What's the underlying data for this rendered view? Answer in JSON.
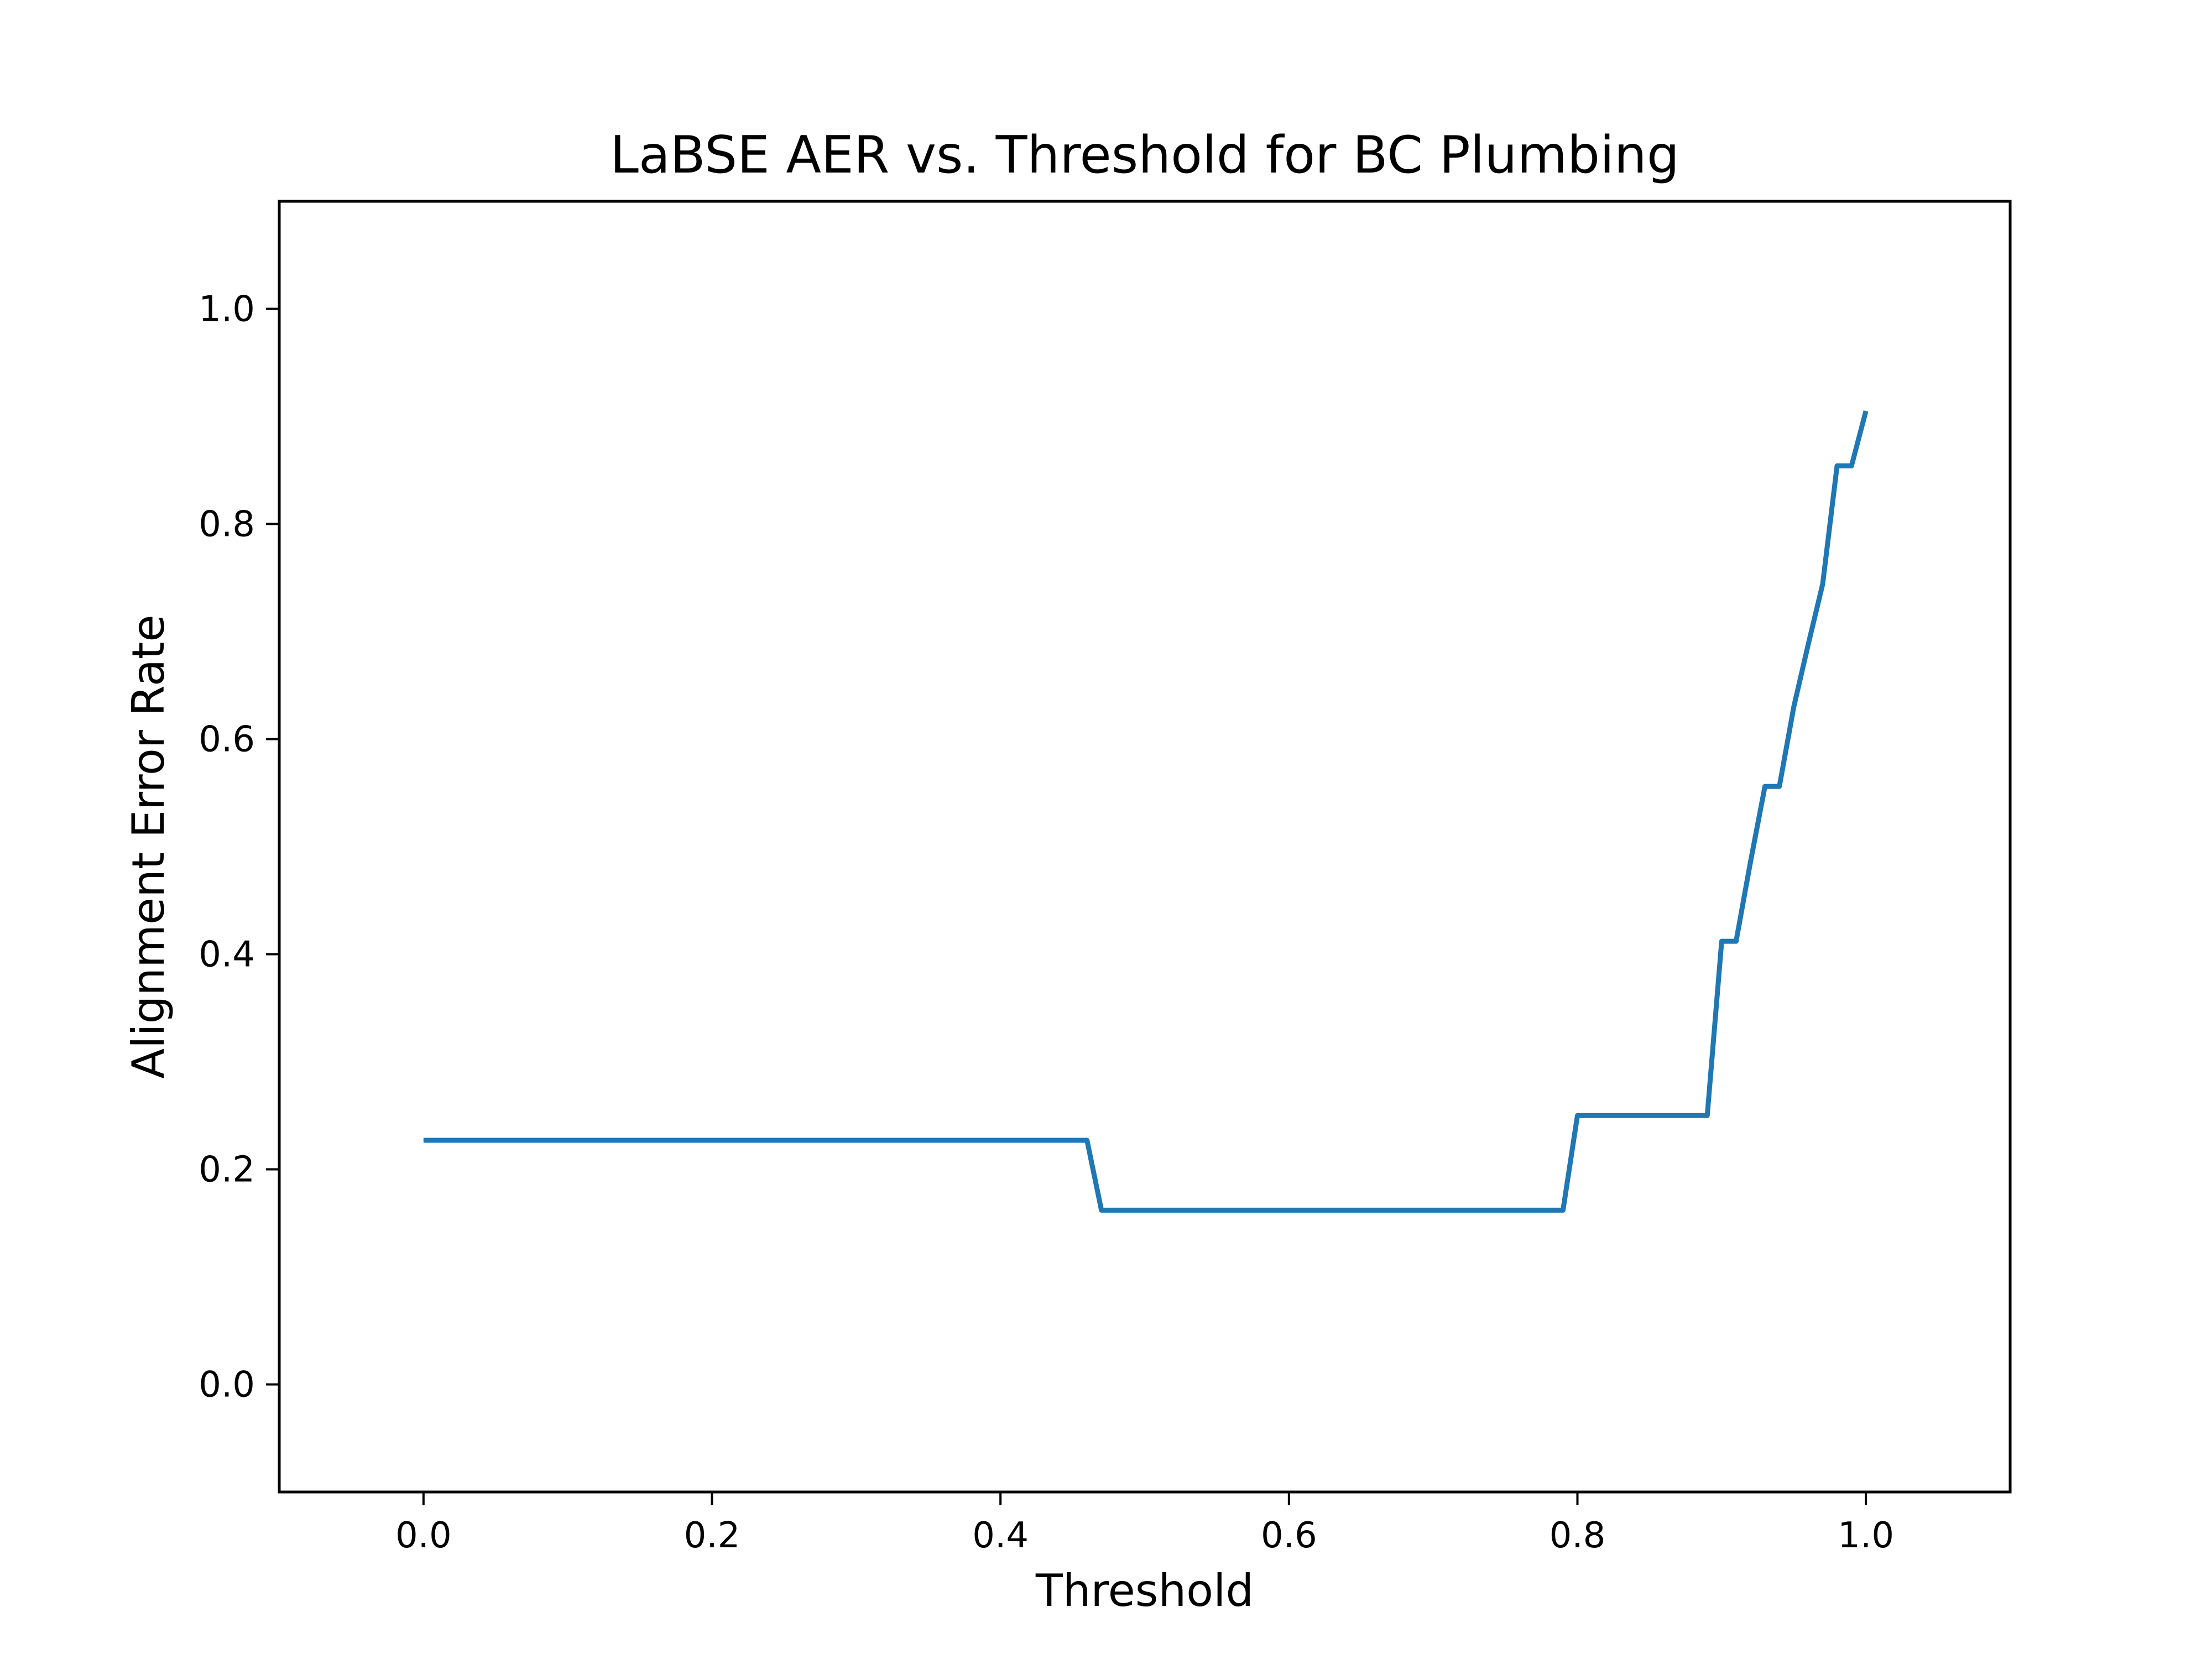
{
  "chart_data": {
    "type": "line",
    "title": "LaBSE AER vs. Threshold for BC Plumbing",
    "xlabel": "Threshold",
    "ylabel": "Alignment Error Rate",
    "xlim": [
      -0.1,
      1.1
    ],
    "ylim": [
      -0.1,
      1.1
    ],
    "xticks": [
      0.0,
      0.2,
      0.4,
      0.6,
      0.8,
      1.0
    ],
    "xtick_labels": [
      "0.0",
      "0.2",
      "0.4",
      "0.6",
      "0.8",
      "1.0"
    ],
    "yticks": [
      0.0,
      0.2,
      0.4,
      0.6,
      0.8,
      1.0
    ],
    "ytick_labels": [
      "0.0",
      "0.2",
      "0.4",
      "0.6",
      "0.8",
      "1.0"
    ],
    "grid": false,
    "colors": {
      "series": "#1f77b4"
    },
    "series": [
      {
        "x": [
          0.0,
          0.1,
          0.2,
          0.3,
          0.4,
          0.46,
          0.47,
          0.5,
          0.6,
          0.7,
          0.79,
          0.8,
          0.85,
          0.89,
          0.9,
          0.91,
          0.92,
          0.93,
          0.94,
          0.95,
          0.96,
          0.97,
          0.98,
          0.99,
          1.0
        ],
        "y": [
          0.227,
          0.227,
          0.227,
          0.227,
          0.227,
          0.227,
          0.162,
          0.162,
          0.162,
          0.162,
          0.162,
          0.25,
          0.25,
          0.25,
          0.412,
          0.412,
          0.486,
          0.556,
          0.556,
          0.63,
          0.688,
          0.744,
          0.854,
          0.854,
          0.905
        ]
      }
    ]
  }
}
